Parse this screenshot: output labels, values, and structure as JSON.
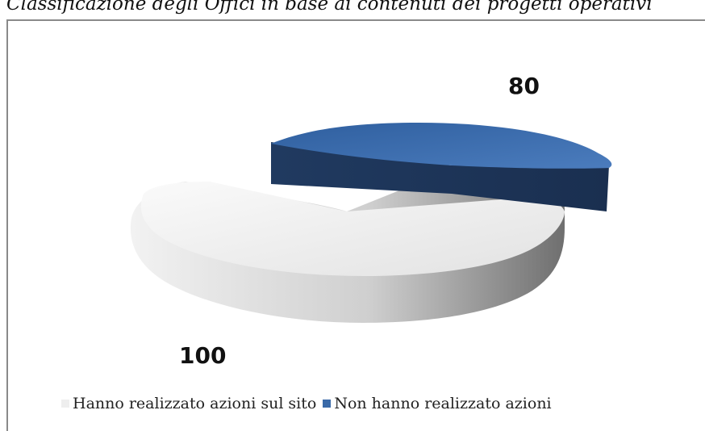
{
  "title": "Classificazione degli Offici in base ai contenuti dei progetti operativi",
  "chart_data": {
    "type": "pie",
    "style": "3d-exploded",
    "series": [
      {
        "name": "Hanno realizzato azioni sul sito",
        "value": 100,
        "color": "#e6e6e6"
      },
      {
        "name": "Non hanno realizzato azioni",
        "value": 80,
        "color": "#3a6aa8"
      }
    ],
    "data_labels": [
      "100",
      "80"
    ],
    "legend_position": "bottom"
  }
}
